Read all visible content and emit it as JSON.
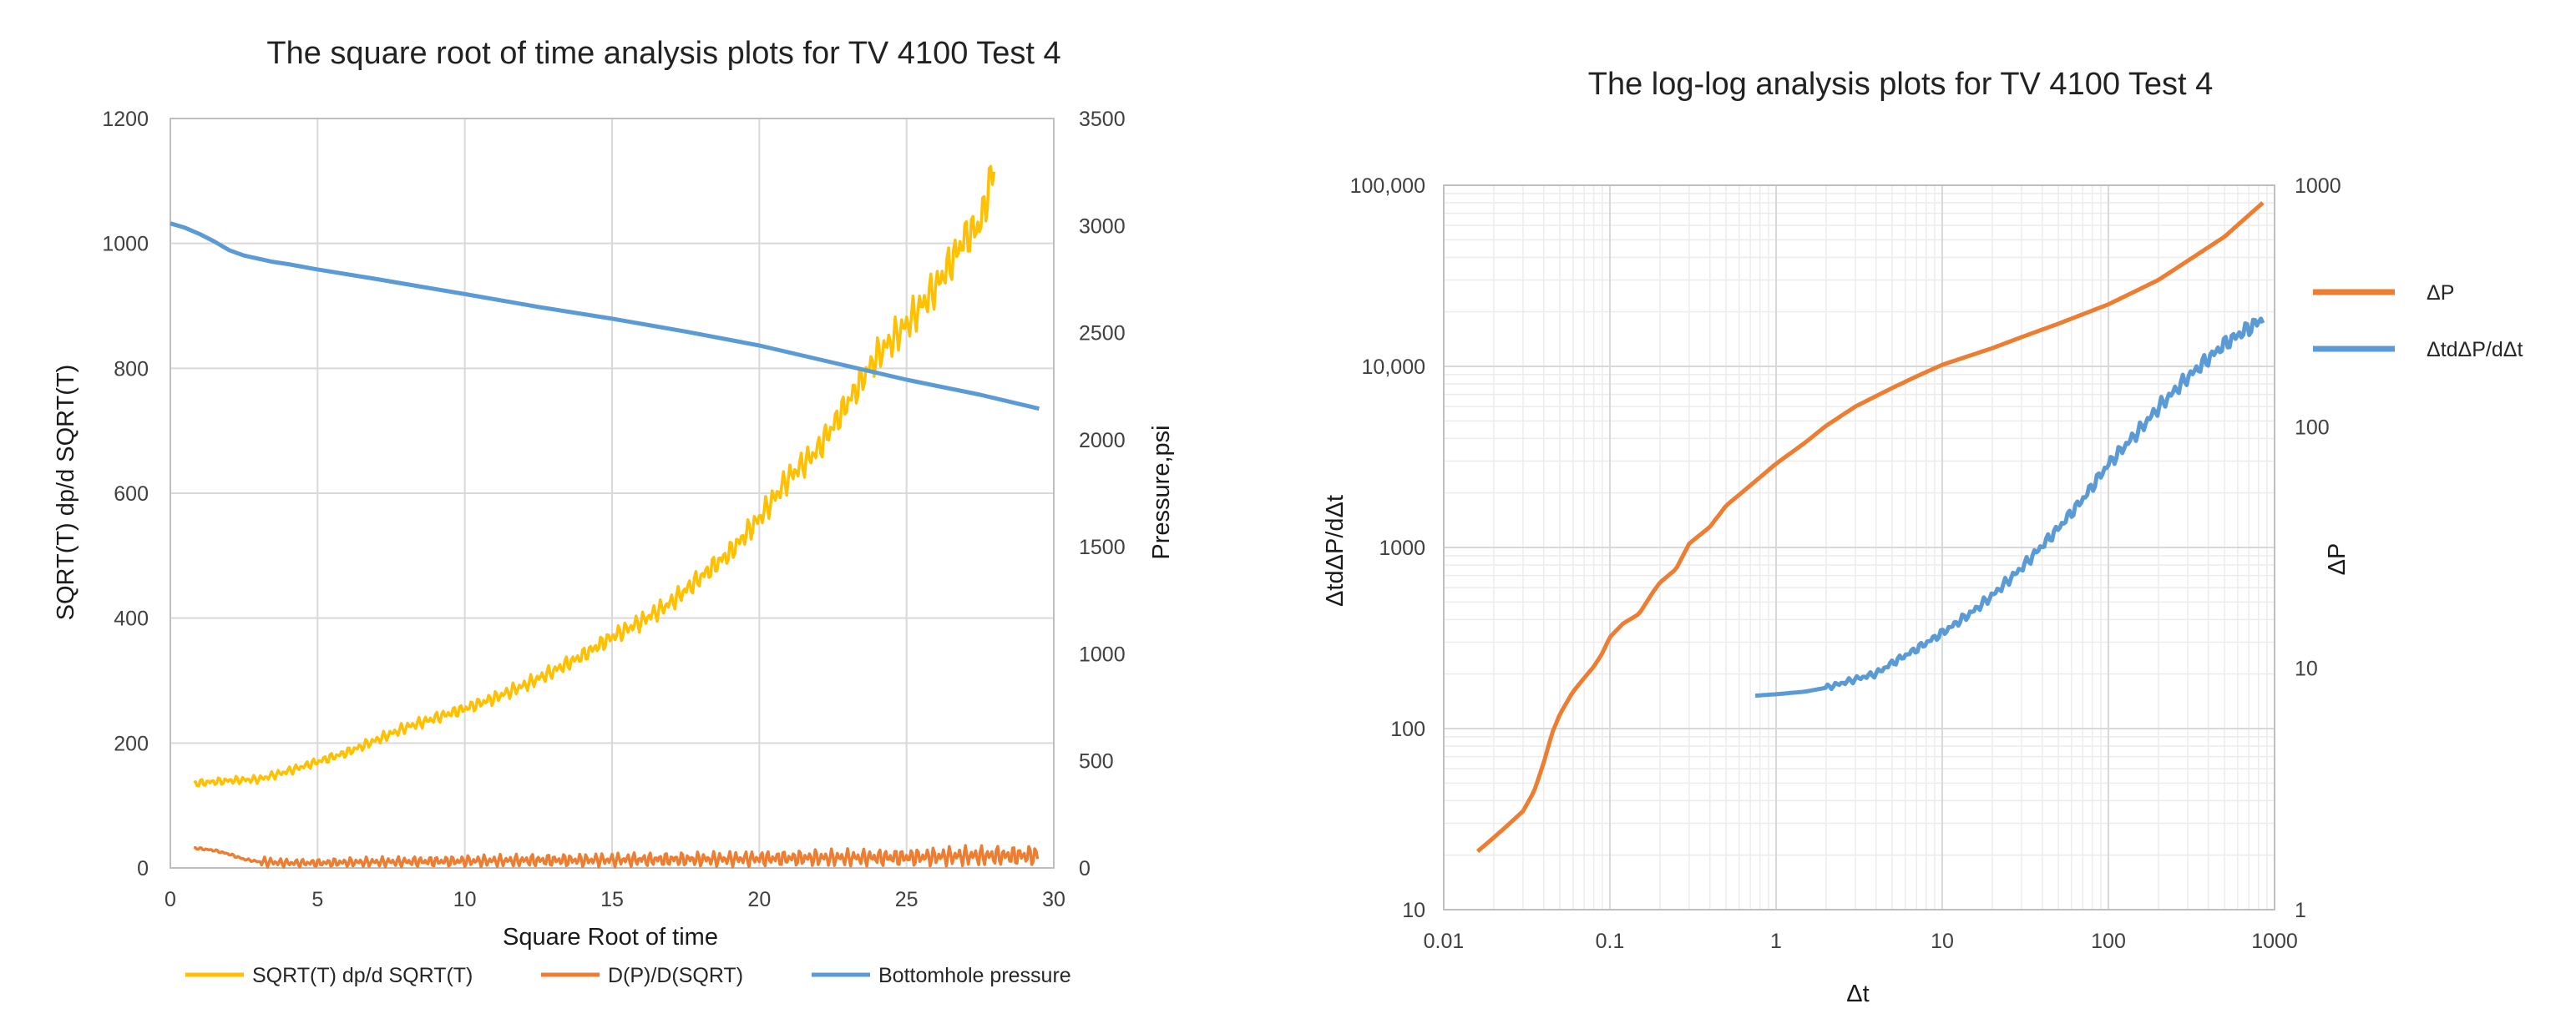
{
  "chart_data": [
    {
      "type": "line",
      "title": "The square root of time analysis plots for TV 4100 Test 4",
      "xlabel": "Square Root of time",
      "ylabel": "SQRT(T) dp/d SQRT(T)",
      "y2label": "Pressure,psi",
      "xlim": [
        0,
        30
      ],
      "ylim": [
        0,
        1200
      ],
      "y2lim": [
        0,
        3500
      ],
      "x_ticks": [
        "0",
        "5",
        "10",
        "15",
        "20",
        "25",
        "30"
      ],
      "y_ticks": [
        "0",
        "200",
        "400",
        "600",
        "800",
        "1000",
        "1200"
      ],
      "y2_ticks": [
        "0",
        "500",
        "1000",
        "1500",
        "2000",
        "2500",
        "3000",
        "3500"
      ],
      "grid": true,
      "legend_position": "bottom",
      "series": [
        {
          "name": "SQRT(T) dp/d SQRT(T)",
          "axis": "left",
          "color": "#FFC000",
          "x": [
            0.8,
            1.5,
            2,
            3,
            4,
            5,
            6,
            7,
            8,
            9,
            10,
            11,
            12,
            13,
            14,
            15,
            16,
            17,
            18,
            19,
            20,
            21,
            22,
            23,
            24,
            25,
            26,
            27,
            27.5,
            28
          ],
          "y": [
            135,
            138,
            140,
            142,
            155,
            170,
            185,
            205,
            225,
            240,
            255,
            272,
            292,
            315,
            340,
            370,
            395,
            425,
            465,
            505,
            560,
            625,
            670,
            745,
            820,
            870,
            930,
            1010,
            1030,
            1130
          ]
        },
        {
          "name": "D(P)/D(SQRT)",
          "axis": "left",
          "color": "#ED7D31",
          "x": [
            0.8,
            1.5,
            2,
            2.5,
            3,
            3.5,
            4,
            5,
            6,
            8,
            10,
            12,
            15,
            18,
            20,
            22,
            25,
            27,
            29.5
          ],
          "y": [
            32,
            28,
            22,
            14,
            10,
            9,
            8,
            8,
            9,
            10,
            11,
            12,
            13,
            14,
            15,
            16,
            17,
            19,
            20
          ]
        },
        {
          "name": "Bottomhole pressure",
          "axis": "right",
          "color": "#5B9BD5",
          "x": [
            0,
            0.5,
            1,
            1.5,
            2,
            2.5,
            3,
            3.5,
            4,
            5,
            7,
            10,
            12.5,
            15,
            17.5,
            20,
            22.5,
            25,
            27.5,
            29.5
          ],
          "y": [
            3010,
            2990,
            2960,
            2925,
            2885,
            2860,
            2845,
            2830,
            2820,
            2795,
            2750,
            2680,
            2620,
            2565,
            2505,
            2440,
            2360,
            2280,
            2210,
            2145
          ]
        }
      ]
    },
    {
      "type": "line",
      "title": "The log-log analysis plots for TV 4100 Test 4",
      "xlabel": "Δt",
      "ylabel": "ΔtdΔP/dΔt",
      "y2label": "ΔP",
      "xscale": "log",
      "yscale": "log",
      "y2scale": "log",
      "xlim": [
        0.01,
        1000
      ],
      "ylim": [
        10,
        100000
      ],
      "y2lim": [
        1,
        1000
      ],
      "x_ticks": [
        "0.01",
        "0.1",
        "1",
        "10",
        "100",
        "1000"
      ],
      "y_ticks": [
        "10",
        "100",
        "1000",
        "10,000",
        "100,000"
      ],
      "y2_ticks": [
        "1",
        "10",
        "100",
        "1000"
      ],
      "grid": true,
      "legend_position": "right",
      "series": [
        {
          "name": "ΔP",
          "axis": "left",
          "color": "#ED7D31",
          "x": [
            0.016,
            0.02,
            0.025,
            0.03,
            0.035,
            0.04,
            0.045,
            0.05,
            0.06,
            0.07,
            0.08,
            0.09,
            0.1,
            0.12,
            0.15,
            0.18,
            0.2,
            0.25,
            0.3,
            0.4,
            0.5,
            0.7,
            1,
            1.5,
            2,
            3,
            5,
            7,
            10,
            20,
            30,
            50,
            100,
            200,
            500,
            850
          ],
          "y": [
            21,
            25,
            30,
            35,
            45,
            65,
            95,
            120,
            160,
            190,
            220,
            260,
            320,
            380,
            430,
            560,
            640,
            760,
            1050,
            1300,
            1700,
            2200,
            2900,
            3800,
            4700,
            6000,
            7600,
            8800,
            10200,
            12600,
            14500,
            17200,
            22000,
            30000,
            52000,
            80000
          ]
        },
        {
          "name": "ΔtdΔP/dΔt",
          "axis": "right",
          "color": "#5B9BD5",
          "x": [
            0.75,
            1,
            1.5,
            2,
            3,
            4,
            5,
            7,
            10,
            15,
            20,
            30,
            50,
            70,
            100,
            150,
            200,
            300,
            500,
            850
          ],
          "y": [
            7.7,
            7.8,
            8,
            8.3,
            9,
            9.5,
            10.5,
            12,
            14,
            17,
            20,
            26,
            38,
            50,
            70,
            95,
            120,
            160,
            220,
            280
          ]
        }
      ]
    }
  ]
}
